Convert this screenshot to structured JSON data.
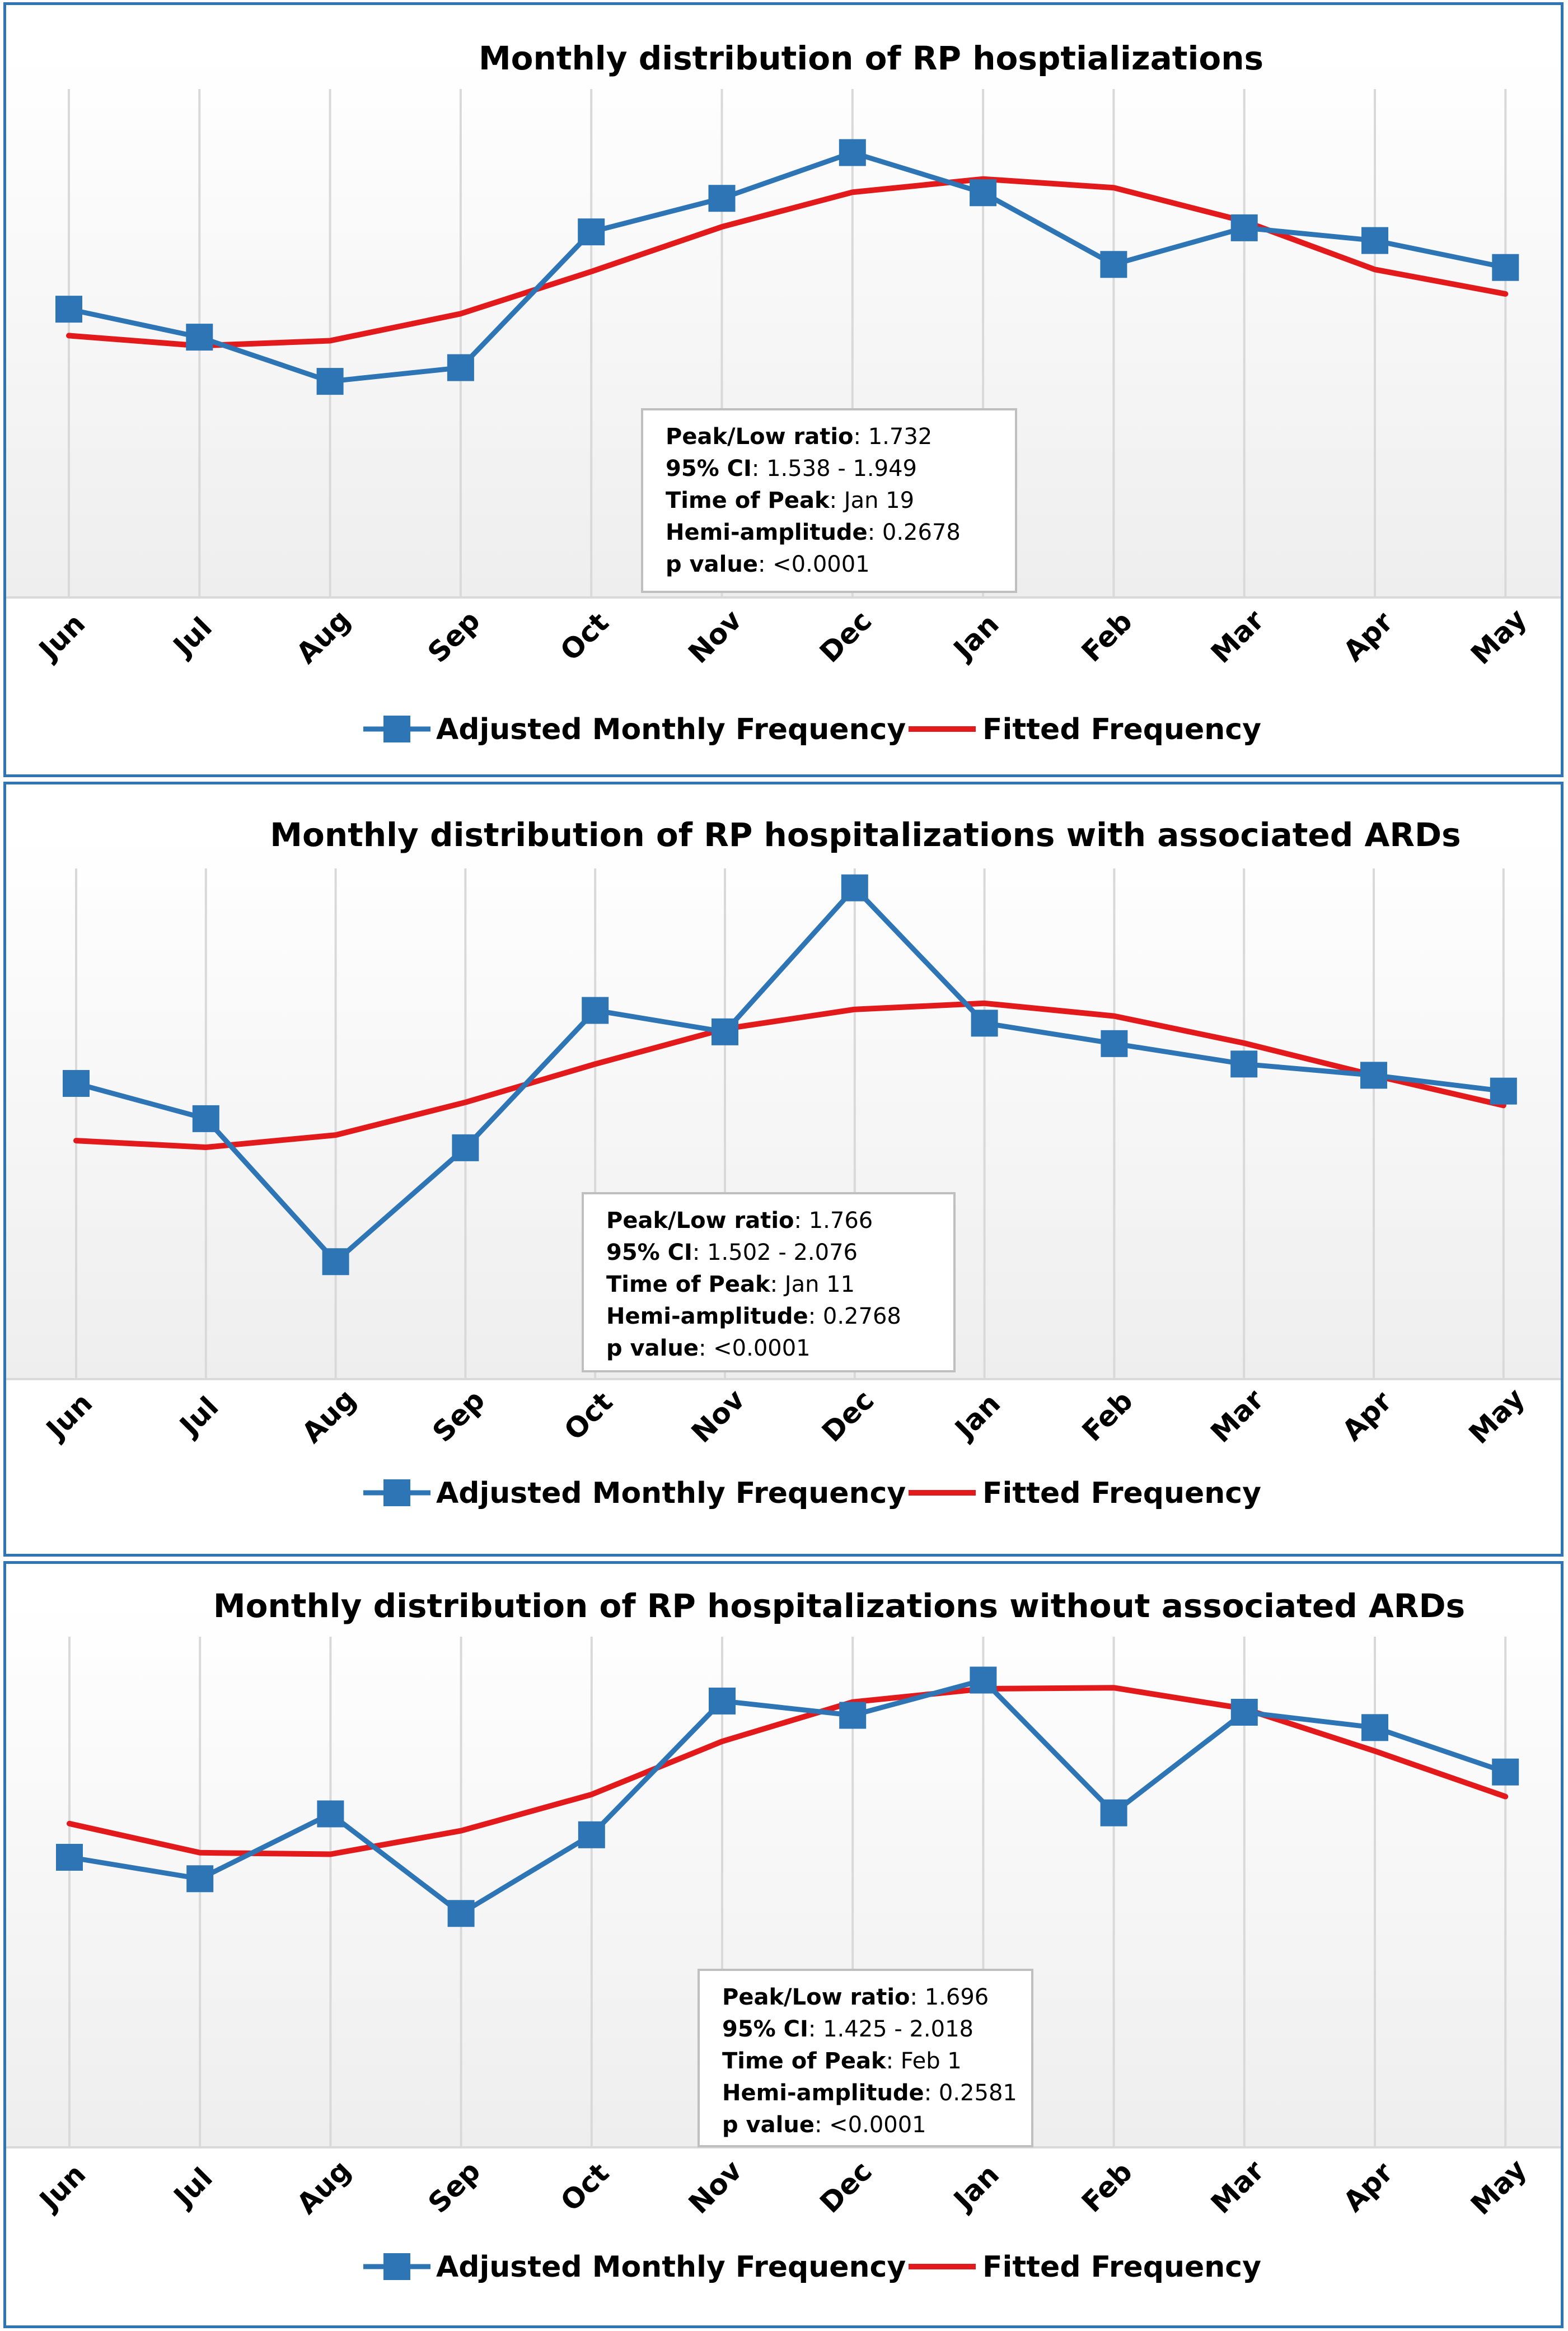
{
  "chart_data": [
    {
      "type": "line",
      "title": "Monthly distribution of RP hosptializations",
      "categories": [
        "Jun",
        "Jul",
        "Aug",
        "Sep",
        "Oct",
        "Nov",
        "Dec",
        "Jan",
        "Feb",
        "Mar",
        "Apr",
        "May"
      ],
      "ylim": [
        0,
        1
      ],
      "grid": "vertical",
      "legend": "bottom",
      "series": [
        {
          "name": "Adjusted Monthly Frequency",
          "color": "#2e75b6",
          "marker": "square",
          "values": [
            0.567,
            0.512,
            0.425,
            0.452,
            0.719,
            0.785,
            0.875,
            0.796,
            0.655,
            0.727,
            0.702,
            0.649
          ]
        },
        {
          "name": "Fitted Frequency",
          "color": "#e31a1c",
          "values": [
            0.515,
            0.495,
            0.505,
            0.558,
            0.641,
            0.729,
            0.797,
            0.823,
            0.806,
            0.74,
            0.645,
            0.597
          ]
        }
      ],
      "stats": {
        "peak_low_label": "Peak/Low ratio",
        "peak_low_value": ": 1.732",
        "ci_label": "95% CI",
        "ci_value": ": 1.538 - 1.949",
        "peak_time_label": "Time of Peak",
        "peak_time_value": ":  Jan 19",
        "hemi_label": "Hemi-amplitude",
        "hemi_value": ": 0.2678",
        "p_label": "p value",
        "p_value": ":  <0.0001"
      }
    },
    {
      "type": "line",
      "title": "Monthly distribution of RP hospitalizations with associated ARDs",
      "categories": [
        "Jun",
        "Jul",
        "Aug",
        "Sep",
        "Oct",
        "Nov",
        "Dec",
        "Jan",
        "Feb",
        "Mar",
        "Apr",
        "May"
      ],
      "ylim": [
        0,
        1
      ],
      "grid": "vertical",
      "legend": "bottom",
      "series": [
        {
          "name": "Adjusted Monthly Frequency",
          "color": "#2e75b6",
          "marker": "square",
          "values": [
            0.579,
            0.51,
            0.23,
            0.453,
            0.722,
            0.68,
            0.962,
            0.697,
            0.657,
            0.617,
            0.595,
            0.564
          ]
        },
        {
          "name": "Fitted Frequency",
          "color": "#e31a1c",
          "values": [
            0.467,
            0.454,
            0.478,
            0.542,
            0.617,
            0.686,
            0.724,
            0.736,
            0.711,
            0.658,
            0.595,
            0.536
          ]
        }
      ],
      "stats": {
        "peak_low_label": "Peak/Low ratio",
        "peak_low_value": ": 1.766",
        "ci_label": "95% CI",
        "ci_value": ": 1.502 - 2.076",
        "peak_time_label": "Time of Peak",
        "peak_time_value": ":  Jan 11",
        "hemi_label": "Hemi-amplitude",
        "hemi_value": ": 0.2768",
        "p_label": "p value",
        "p_value": ":  <0.0001"
      }
    },
    {
      "type": "line",
      "title": "Monthly distribution of RP hospitalizations without associated ARDs",
      "categories": [
        "Jun",
        "Jul",
        "Aug",
        "Sep",
        "Oct",
        "Nov",
        "Dec",
        "Jan",
        "Feb",
        "Mar",
        "Apr",
        "May"
      ],
      "ylim": [
        0,
        1
      ],
      "grid": "vertical",
      "legend": "bottom",
      "series": [
        {
          "name": "Adjusted Monthly Frequency",
          "color": "#2e75b6",
          "marker": "square",
          "values": [
            0.568,
            0.526,
            0.653,
            0.458,
            0.612,
            0.874,
            0.846,
            0.915,
            0.655,
            0.852,
            0.822,
            0.735
          ]
        },
        {
          "name": "Fitted Frequency",
          "color": "#e31a1c",
          "values": [
            0.634,
            0.577,
            0.574,
            0.62,
            0.691,
            0.795,
            0.872,
            0.898,
            0.9,
            0.859,
            0.776,
            0.687
          ]
        }
      ],
      "stats": {
        "peak_low_label": "Peak/Low ratio",
        "peak_low_value": ": 1.696",
        "ci_label": "95% CI",
        "ci_value": ": 1.425 - 2.018",
        "peak_time_label": "Time of Peak",
        "peak_time_value": ":  Feb 1",
        "hemi_label": "Hemi-amplitude",
        "hemi_value": ": 0.2581",
        "p_label": "p value",
        "p_value": ":  <0.0001"
      }
    }
  ]
}
